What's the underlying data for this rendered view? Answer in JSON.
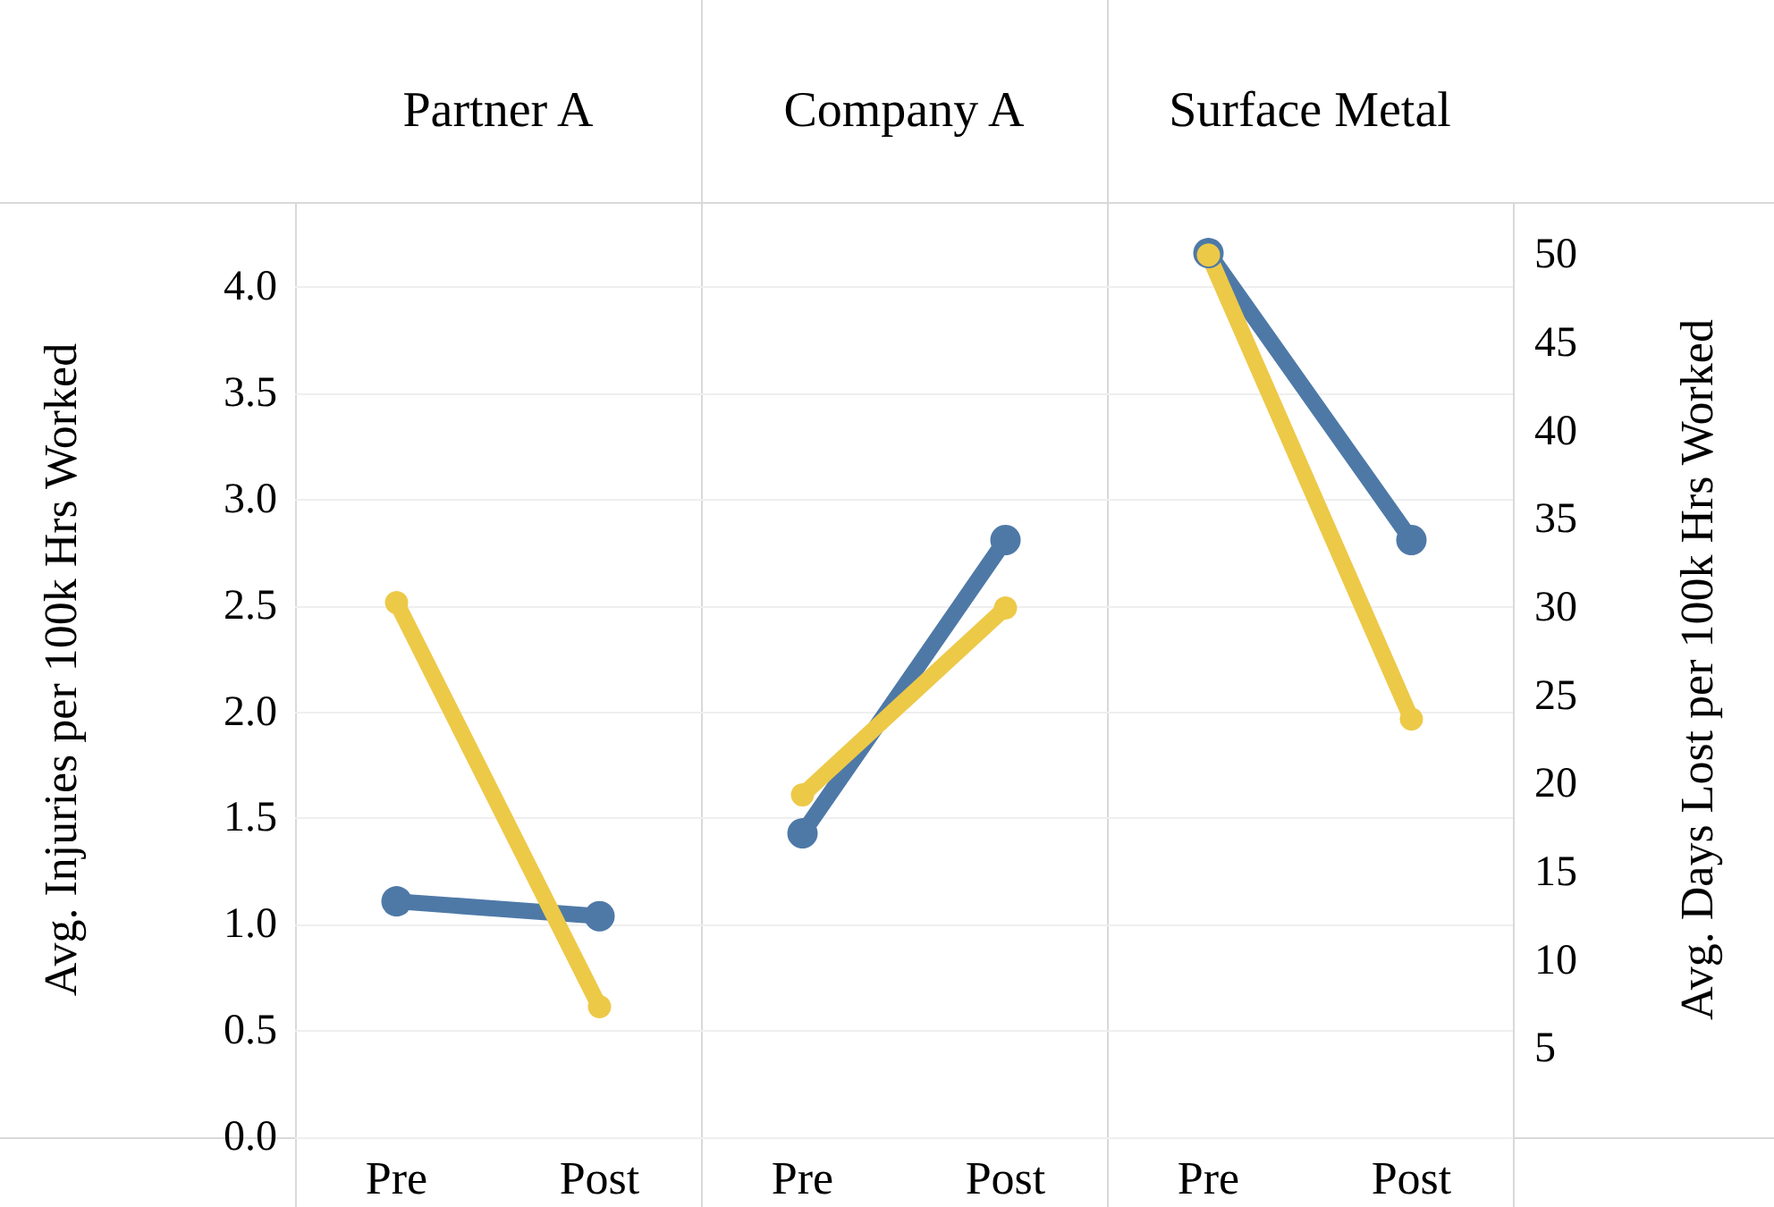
{
  "chart_data": {
    "type": "line",
    "ylabel": "Avg. Injuries per 100k Hrs Worked",
    "y2label": "Avg. Days Lost per 100k Hrs Worked",
    "annotations": [
      "Partner A",
      "Company A",
      "Surface Metal"
    ],
    "categories": [
      "Pre",
      "Post",
      "Pre",
      "Post",
      "Pre",
      "Post"
    ],
    "series": [
      {
        "color": "#4e79a7",
        "values": [
          1.11,
          1.04,
          null,
          null,
          null,
          null
        ]
      },
      {
        "color": "#edc948",
        "values": [
          30.3,
          7.4,
          null,
          null,
          null,
          null
        ],
        "axis": "y2"
      },
      {
        "color": "#4e79a7",
        "values": [
          null,
          null,
          1.43,
          2.81,
          null,
          null
        ]
      },
      {
        "color": "#edc948",
        "values": [
          null,
          null,
          19.4,
          30.0,
          null,
          null
        ],
        "axis": "y2"
      },
      {
        "color": "#4e79a7",
        "values": [
          null,
          null,
          null,
          null,
          4.16,
          2.81
        ]
      },
      {
        "color": "#edc948",
        "values": [
          null,
          null,
          null,
          null,
          50.0,
          23.7
        ],
        "axis": "y2"
      }
    ],
    "ylim": [
      0,
      4.4
    ],
    "yticks": [
      {
        "value": 0,
        "label": "0.0"
      },
      0.5,
      {
        "value": 1,
        "label": "1.0"
      },
      1.5,
      {
        "value": 2,
        "label": "2.0"
      },
      2.5,
      {
        "value": 3,
        "label": "3.0"
      },
      3.5,
      {
        "value": 4,
        "label": "4.0"
      }
    ],
    "y2lim": [
      0,
      53
    ],
    "y2ticks": [
      5,
      10,
      15,
      20,
      25,
      30,
      35,
      40,
      45,
      50
    ],
    "grid": "y",
    "marker": "circle"
  }
}
